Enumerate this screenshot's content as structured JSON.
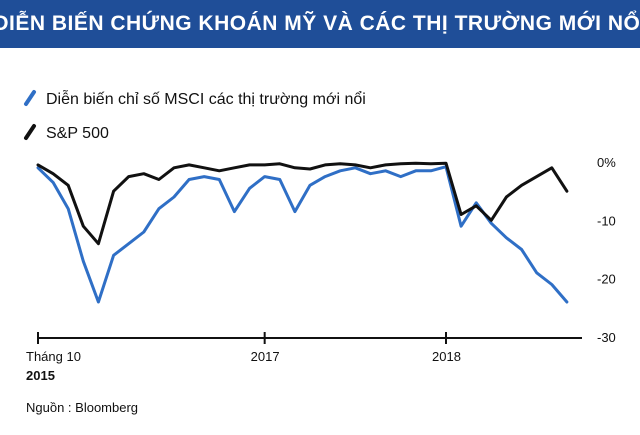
{
  "header": {
    "title": "DIỄN BIẾN CHỨNG KHOÁN MỸ VÀ CÁC THỊ TRƯỜNG MỚI NỔI",
    "background_color": "#1f4e98"
  },
  "source": {
    "label": "Nguồn",
    "separator": " : ",
    "name": "Bloomberg"
  },
  "chart_data": {
    "type": "line",
    "title": "",
    "xlabel": "",
    "ylabel": "",
    "ylim": [
      -30,
      0
    ],
    "y_unit": "%",
    "y_ticks": [
      0,
      -10,
      -20,
      -30
    ],
    "y_tick_labels": [
      "0%",
      "-10",
      "-20",
      "-30"
    ],
    "x_tick_labels": [
      {
        "x": "2015-10",
        "line1": "Tháng 10",
        "line2": "2015"
      },
      {
        "x": "2017-01",
        "line1": "2017",
        "line2": ""
      },
      {
        "x": "2018-01",
        "line1": "2018",
        "line2": ""
      }
    ],
    "x_range": [
      "2015-10",
      "2018-10"
    ],
    "grid": false,
    "legend_position": "top-left",
    "series": [
      {
        "name": "Diễn biến chỉ số MSCI các thị trường mới nổi",
        "color": "#2f6fc6",
        "x": [
          "2015-10",
          "2015-11",
          "2015-12",
          "2016-01",
          "2016-02",
          "2016-03",
          "2016-04",
          "2016-05",
          "2016-06",
          "2016-07",
          "2016-08",
          "2016-09",
          "2016-10",
          "2016-11",
          "2016-12",
          "2017-01",
          "2017-02",
          "2017-03",
          "2017-04",
          "2017-05",
          "2017-06",
          "2017-07",
          "2017-08",
          "2017-09",
          "2017-10",
          "2017-11",
          "2017-12",
          "2018-01",
          "2018-02",
          "2018-03",
          "2018-04",
          "2018-05",
          "2018-06",
          "2018-07",
          "2018-08",
          "2018-09"
        ],
        "values": [
          -1.0,
          -3.5,
          -8.0,
          -17.0,
          -24.0,
          -16.0,
          -14.0,
          -12.0,
          -8.0,
          -6.0,
          -3.0,
          -2.5,
          -3.0,
          -8.5,
          -4.5,
          -2.5,
          -3.0,
          -8.5,
          -4.0,
          -2.5,
          -1.5,
          -1.0,
          -2.0,
          -1.5,
          -2.5,
          -1.5,
          -1.5,
          -0.8,
          -11.0,
          -7.0,
          -10.5,
          -13.0,
          -15.0,
          -19.0,
          -21.0,
          -24.0
        ]
      },
      {
        "name": "S&P 500",
        "color": "#111111",
        "x": [
          "2015-10",
          "2015-11",
          "2015-12",
          "2016-01",
          "2016-02",
          "2016-03",
          "2016-04",
          "2016-05",
          "2016-06",
          "2016-07",
          "2016-08",
          "2016-09",
          "2016-10",
          "2016-11",
          "2016-12",
          "2017-01",
          "2017-02",
          "2017-03",
          "2017-04",
          "2017-05",
          "2017-06",
          "2017-07",
          "2017-08",
          "2017-09",
          "2017-10",
          "2017-11",
          "2017-12",
          "2018-01",
          "2018-02",
          "2018-03",
          "2018-04",
          "2018-05",
          "2018-06",
          "2018-07",
          "2018-08",
          "2018-09"
        ],
        "values": [
          -0.5,
          -2.0,
          -4.0,
          -11.0,
          -14.0,
          -5.0,
          -2.5,
          -2.0,
          -3.0,
          -1.0,
          -0.5,
          -1.0,
          -1.5,
          -1.0,
          -0.5,
          -0.5,
          -0.3,
          -1.0,
          -1.2,
          -0.5,
          -0.3,
          -0.5,
          -1.0,
          -0.5,
          -0.3,
          -0.2,
          -0.3,
          -0.2,
          -9.0,
          -7.5,
          -10.0,
          -6.0,
          -4.0,
          -2.5,
          -1.0,
          -5.0
        ]
      }
    ]
  }
}
